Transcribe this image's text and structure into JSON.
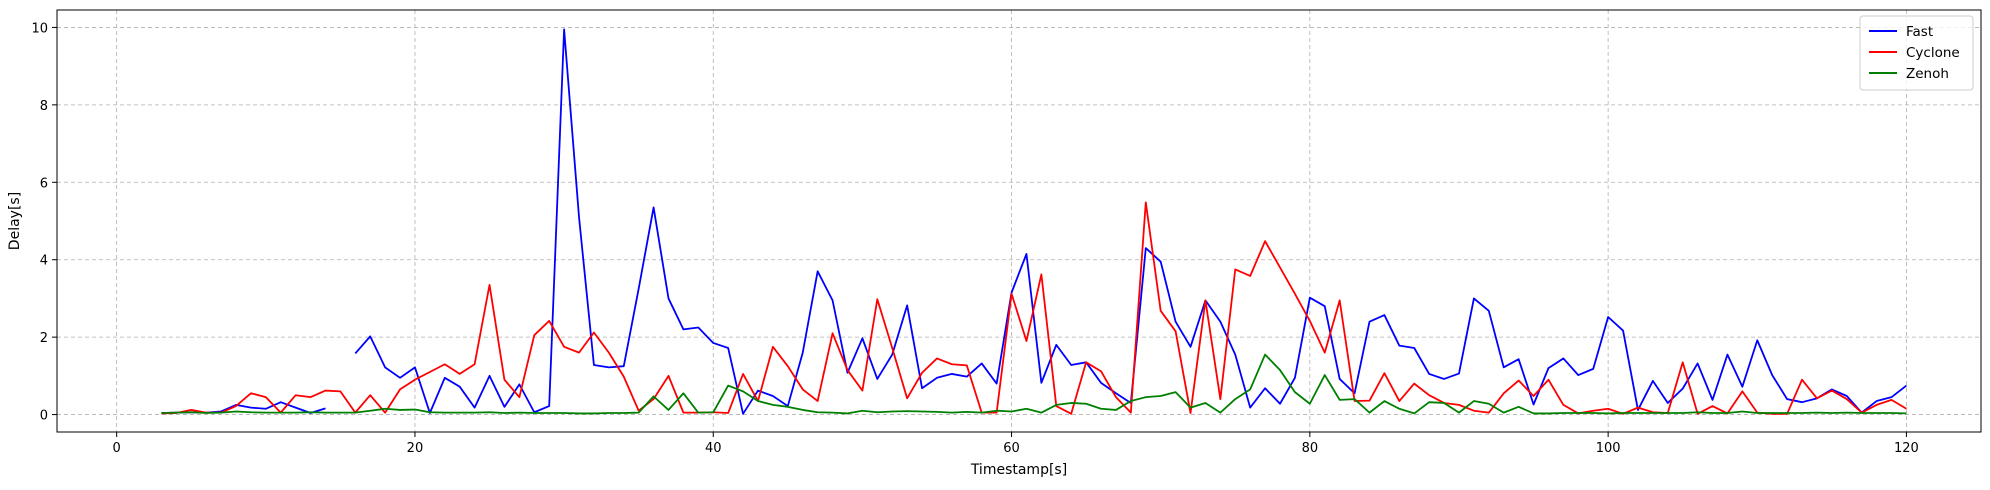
{
  "chart_data": {
    "type": "line",
    "title": "",
    "xlabel": "Timestamp[s]",
    "ylabel": "Delay[s]",
    "xlim": [
      -4,
      125
    ],
    "ylim": [
      -0.45,
      10.45
    ],
    "xticks": [
      0,
      20,
      40,
      60,
      80,
      100,
      120
    ],
    "yticks": [
      0,
      2,
      4,
      6,
      8,
      10
    ],
    "grid": true,
    "legend_position": "top-right",
    "series": [
      {
        "name": "Fast",
        "color": "#0000ff",
        "x": [
          3,
          4,
          5,
          6,
          7,
          8,
          9,
          10,
          11,
          12,
          13,
          14,
          null,
          16,
          17,
          18,
          19,
          20,
          21,
          22,
          23,
          24,
          25,
          26,
          27,
          28,
          29,
          30,
          31,
          32,
          33,
          34,
          35,
          36,
          37,
          38,
          39,
          40,
          41,
          42,
          43,
          44,
          45,
          46,
          47,
          48,
          49,
          50,
          51,
          52,
          53,
          54,
          55,
          56,
          57,
          58,
          59,
          60,
          61,
          62,
          63,
          64,
          65,
          66,
          67,
          68,
          69,
          70,
          71,
          72,
          73,
          74,
          75,
          76,
          77,
          78,
          79,
          80,
          81,
          82,
          83,
          84,
          85,
          86,
          87,
          88,
          89,
          90,
          91,
          92,
          93,
          94,
          95,
          96,
          97,
          98,
          99,
          100,
          101,
          102,
          103,
          104,
          105,
          106,
          107,
          108,
          109,
          110,
          111,
          112,
          113,
          114,
          115,
          116,
          117,
          118,
          119,
          120
        ],
        "y": [
          0.04,
          0.05,
          0.06,
          0.05,
          0.08,
          0.25,
          0.18,
          0.15,
          0.32,
          0.18,
          0.04,
          0.16,
          null,
          1.58,
          2.02,
          1.22,
          0.95,
          1.22,
          0.04,
          0.95,
          0.72,
          0.18,
          1.0,
          0.2,
          0.78,
          0.06,
          0.22,
          9.95,
          5.1,
          1.28,
          1.22,
          1.25,
          3.25,
          5.35,
          3.0,
          2.2,
          2.25,
          1.85,
          1.72,
          0.02,
          0.62,
          0.48,
          0.22,
          1.6,
          3.7,
          2.95,
          1.08,
          1.97,
          0.92,
          1.55,
          2.82,
          0.68,
          0.95,
          1.05,
          0.98,
          1.32,
          0.8,
          3.15,
          4.15,
          0.82,
          1.8,
          1.28,
          1.35,
          0.82,
          0.55,
          0.3,
          4.3,
          3.95,
          2.4,
          1.75,
          2.95,
          2.4,
          1.55,
          0.18,
          0.68,
          0.28,
          0.95,
          3.02,
          2.8,
          0.92,
          0.55,
          2.4,
          2.57,
          1.78,
          1.72,
          1.05,
          0.92,
          1.06,
          3.0,
          2.68,
          1.22,
          1.43,
          0.26,
          1.2,
          1.45,
          1.02,
          1.18,
          2.52,
          2.17,
          0.12,
          0.87,
          0.3,
          0.67,
          1.32,
          0.38,
          1.55,
          0.72,
          1.92,
          1.02,
          0.4,
          0.32,
          0.42,
          0.65,
          0.48,
          0.05,
          0.35,
          0.45,
          0.75
        ]
      },
      {
        "name": "Cyclone",
        "color": "#ff0000",
        "x": [
          3,
          4,
          5,
          6,
          7,
          8,
          9,
          10,
          11,
          12,
          13,
          14,
          15,
          16,
          17,
          18,
          19,
          20,
          21,
          22,
          23,
          24,
          25,
          26,
          27,
          28,
          29,
          30,
          31,
          32,
          33,
          34,
          35,
          36,
          37,
          38,
          39,
          40,
          41,
          42,
          43,
          44,
          45,
          46,
          47,
          48,
          49,
          50,
          51,
          52,
          53,
          54,
          55,
          56,
          57,
          58,
          59,
          60,
          61,
          62,
          63,
          64,
          65,
          66,
          67,
          68,
          69,
          70,
          71,
          72,
          73,
          74,
          75,
          76,
          77,
          78,
          79,
          80,
          81,
          82,
          83,
          84,
          85,
          86,
          87,
          88,
          89,
          90,
          91,
          92,
          93,
          94,
          95,
          96,
          97,
          98,
          99,
          100,
          101,
          102,
          103,
          104,
          105,
          106,
          107,
          108,
          109,
          110,
          111,
          112,
          113,
          114,
          115,
          116,
          117,
          118,
          119,
          120
        ],
        "y": [
          0.03,
          0.04,
          0.12,
          0.05,
          0.05,
          0.22,
          0.55,
          0.45,
          0.05,
          0.5,
          0.45,
          0.62,
          0.6,
          0.05,
          0.5,
          0.05,
          0.65,
          0.9,
          1.1,
          1.3,
          1.05,
          1.3,
          3.35,
          0.9,
          0.45,
          2.05,
          2.42,
          1.75,
          1.6,
          2.12,
          1.6,
          0.98,
          0.1,
          0.4,
          1.0,
          0.05,
          0.05,
          0.06,
          0.04,
          1.05,
          0.35,
          1.75,
          1.25,
          0.65,
          0.35,
          2.1,
          1.15,
          0.62,
          2.98,
          1.72,
          0.42,
          1.08,
          1.45,
          1.3,
          1.27,
          0.05,
          0.05,
          3.12,
          1.9,
          3.62,
          0.22,
          0.02,
          1.35,
          1.12,
          0.45,
          0.05,
          5.48,
          2.68,
          2.15,
          0.04,
          2.95,
          0.4,
          3.75,
          3.58,
          4.48,
          3.8,
          3.12,
          2.42,
          1.6,
          2.95,
          0.35,
          0.36,
          1.07,
          0.35,
          0.8,
          0.5,
          0.3,
          0.25,
          0.1,
          0.05,
          0.55,
          0.88,
          0.48,
          0.9,
          0.25,
          0.03,
          0.1,
          0.15,
          0.02,
          0.18,
          0.06,
          0.04,
          1.35,
          0.02,
          0.22,
          0.03,
          0.6,
          0.05,
          0.02,
          0.02,
          0.9,
          0.42,
          0.62,
          0.4,
          0.05,
          0.25,
          0.38,
          0.15
        ]
      },
      {
        "name": "Zenoh",
        "color": "#008000",
        "x": [
          3,
          4,
          5,
          6,
          7,
          8,
          9,
          10,
          11,
          12,
          13,
          14,
          15,
          16,
          17,
          18,
          19,
          20,
          21,
          22,
          23,
          24,
          25,
          26,
          27,
          28,
          29,
          30,
          31,
          32,
          33,
          34,
          35,
          36,
          37,
          38,
          39,
          40,
          41,
          42,
          43,
          44,
          45,
          46,
          47,
          48,
          49,
          50,
          51,
          52,
          53,
          54,
          55,
          56,
          57,
          58,
          59,
          60,
          61,
          62,
          63,
          64,
          65,
          66,
          67,
          68,
          69,
          70,
          71,
          72,
          73,
          74,
          75,
          76,
          77,
          78,
          79,
          80,
          81,
          82,
          83,
          84,
          85,
          86,
          87,
          88,
          89,
          90,
          91,
          92,
          93,
          94,
          95,
          96,
          97,
          98,
          99,
          100,
          101,
          102,
          103,
          104,
          105,
          106,
          107,
          108,
          109,
          110,
          111,
          112,
          113,
          114,
          115,
          116,
          117,
          118,
          119,
          120
        ],
        "y": [
          0.04,
          0.05,
          0.06,
          0.04,
          0.05,
          0.08,
          0.06,
          0.05,
          0.05,
          0.05,
          0.06,
          0.05,
          0.05,
          0.05,
          0.1,
          0.15,
          0.12,
          0.13,
          0.06,
          0.05,
          0.05,
          0.05,
          0.06,
          0.04,
          0.05,
          0.04,
          0.04,
          0.04,
          0.03,
          0.03,
          0.04,
          0.04,
          0.05,
          0.47,
          0.12,
          0.55,
          0.05,
          0.06,
          0.75,
          0.6,
          0.35,
          0.25,
          0.2,
          0.12,
          0.06,
          0.05,
          0.03,
          0.1,
          0.06,
          0.08,
          0.09,
          0.08,
          0.07,
          0.05,
          0.07,
          0.05,
          0.1,
          0.08,
          0.15,
          0.05,
          0.25,
          0.3,
          0.28,
          0.15,
          0.12,
          0.35,
          0.45,
          0.48,
          0.58,
          0.18,
          0.3,
          0.05,
          0.4,
          0.65,
          1.55,
          1.15,
          0.58,
          0.28,
          1.02,
          0.38,
          0.4,
          0.05,
          0.35,
          0.15,
          0.03,
          0.32,
          0.3,
          0.05,
          0.35,
          0.28,
          0.05,
          0.2,
          0.03,
          0.03,
          0.04,
          0.04,
          0.04,
          0.03,
          0.04,
          0.04,
          0.04,
          0.04,
          0.04,
          0.06,
          0.04,
          0.04,
          0.08,
          0.04,
          0.04,
          0.04,
          0.04,
          0.05,
          0.04,
          0.05,
          0.04,
          0.04,
          0.04,
          0.03
        ]
      }
    ]
  }
}
